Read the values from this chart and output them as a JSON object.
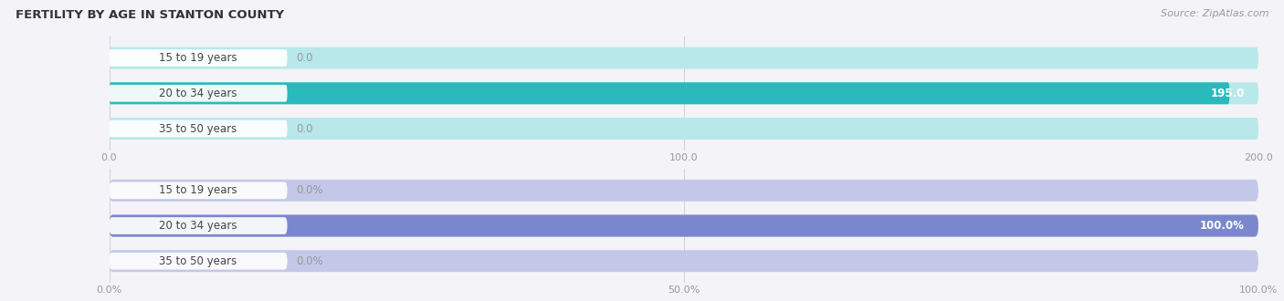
{
  "title": "FERTILITY BY AGE IN STANTON COUNTY",
  "source": "Source: ZipAtlas.com",
  "top_chart": {
    "categories": [
      "15 to 19 years",
      "20 to 34 years",
      "35 to 50 years"
    ],
    "values": [
      0.0,
      195.0,
      0.0
    ],
    "xlim": [
      0,
      200
    ],
    "xticks": [
      0.0,
      100.0,
      200.0
    ],
    "xtick_labels": [
      "0.0",
      "100.0",
      "200.0"
    ],
    "bar_color_full": "#2ab9bc",
    "bar_color_empty": "#b8e8ea",
    "label_inside_color": "#ffffff",
    "label_outside_color": "#999999"
  },
  "bottom_chart": {
    "categories": [
      "15 to 19 years",
      "20 to 34 years",
      "35 to 50 years"
    ],
    "values": [
      0.0,
      100.0,
      0.0
    ],
    "xlim": [
      0,
      100
    ],
    "xticks": [
      0.0,
      50.0,
      100.0
    ],
    "xtick_labels": [
      "0.0%",
      "50.0%",
      "100.0%"
    ],
    "bar_color_full": "#7b87cc",
    "bar_color_empty": "#c4c8e8",
    "label_inside_color": "#ffffff",
    "label_outside_color": "#999999"
  },
  "fig_bg": "#f4f4f8",
  "chart_bg": "#f4f4f8",
  "title_fontsize": 9.5,
  "source_fontsize": 8,
  "tick_fontsize": 8,
  "bar_label_fontsize": 8.5,
  "cat_label_fontsize": 8.5
}
